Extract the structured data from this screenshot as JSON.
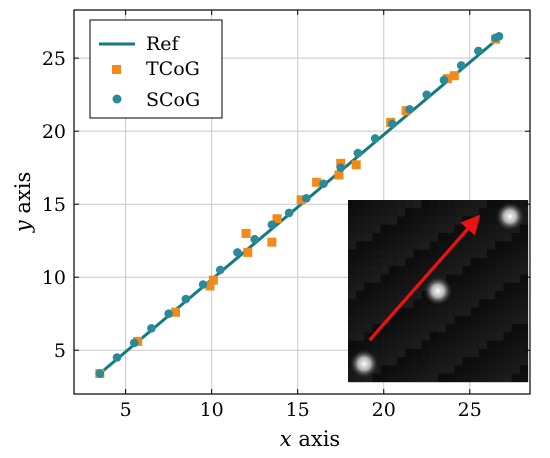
{
  "chart_data": {
    "type": "scatter",
    "xlabel_var": "x",
    "xlabel_word": "axis",
    "ylabel_var": "y",
    "ylabel_word": "axis",
    "xlim": [
      2,
      28.5
    ],
    "ylim": [
      2,
      28.3
    ],
    "xticks": [
      5,
      10,
      15,
      20,
      25
    ],
    "yticks": [
      5,
      10,
      15,
      20,
      25
    ],
    "xtick_labels": [
      "5",
      "10",
      "15",
      "20",
      "25"
    ],
    "ytick_labels": [
      "5",
      "10",
      "15",
      "20",
      "25"
    ],
    "grid": true,
    "legend_position": "top-left",
    "series": [
      {
        "name": "Ref",
        "kind": "line",
        "color": "#137b7b",
        "x": [
          3.5,
          26.7
        ],
        "y": [
          3.4,
          26.4
        ]
      },
      {
        "name": "TCoG",
        "kind": "square",
        "color": "#f28a1a",
        "x": [
          3.5,
          5.7,
          7.9,
          9.9,
          10.1,
          12.0,
          12.1,
          13.5,
          13.8,
          15.2,
          16.1,
          17.4,
          17.5,
          18.4,
          20.4,
          21.3,
          23.7,
          24.1,
          26.5
        ],
        "y": [
          3.4,
          5.6,
          7.6,
          9.4,
          9.8,
          13.0,
          11.7,
          12.4,
          14.0,
          15.3,
          16.5,
          17.0,
          17.8,
          17.7,
          20.6,
          21.4,
          23.6,
          23.8,
          26.3
        ]
      },
      {
        "name": "SCoG",
        "kind": "circle",
        "color": "#2a8a9a",
        "x": [
          3.5,
          4.5,
          5.5,
          6.5,
          7.5,
          8.5,
          9.5,
          10.5,
          11.5,
          12.5,
          13.5,
          14.5,
          15.5,
          16.5,
          17.5,
          18.5,
          19.5,
          20.5,
          21.5,
          22.5,
          23.5,
          24.5,
          25.5,
          26.5,
          26.7
        ],
        "y": [
          3.4,
          4.5,
          5.5,
          6.5,
          7.5,
          8.5,
          9.5,
          10.5,
          11.7,
          12.6,
          13.6,
          14.4,
          15.4,
          16.4,
          17.5,
          18.5,
          19.5,
          20.5,
          21.5,
          22.5,
          23.5,
          24.5,
          25.5,
          26.4,
          26.5
        ]
      }
    ],
    "inset": {
      "type": "image",
      "description_colors": {
        "background": "#0c0c0c",
        "arrow": "#ee1111",
        "spot": "#ffffff"
      },
      "arrow": {
        "from": [
          0.12,
          0.77
        ],
        "to": [
          0.7,
          0.12
        ]
      },
      "spots": [
        {
          "cx": 0.09,
          "cy": 0.9
        },
        {
          "cx": 0.5,
          "cy": 0.5
        },
        {
          "cx": 0.9,
          "cy": 0.09
        }
      ]
    }
  }
}
